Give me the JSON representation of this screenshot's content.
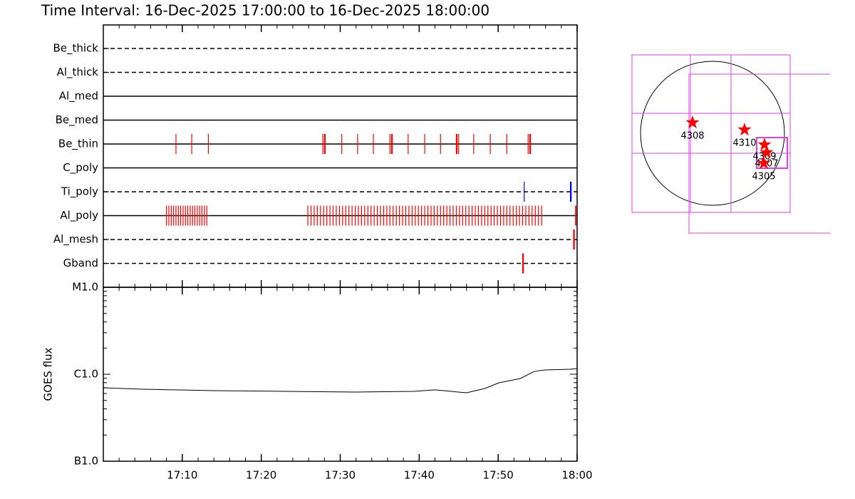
{
  "title": "Time Interval: 16-Dec-2025 17:00:00 to 16-Dec-2025 18:00:00",
  "chart_data": [
    {
      "type": "event",
      "series": [
        {
          "name": "Be_thick",
          "style": "dashed",
          "color": "#ff0000",
          "x": []
        },
        {
          "name": "Al_thick",
          "style": "dashed",
          "color": "#ff0000",
          "x": []
        },
        {
          "name": "Al_med",
          "style": "solid",
          "color": "#ff0000",
          "x": []
        },
        {
          "name": "Be_med",
          "style": "solid",
          "color": "#ff0000",
          "x": []
        },
        {
          "name": "Be_thin",
          "style": "solid",
          "color": "#ff0000",
          "x": [
            9.2,
            11.2,
            13.3,
            27.8,
            28.0,
            28.1,
            30.2,
            32.2,
            34.2,
            36.3,
            36.5,
            36.6,
            38.6,
            40.7,
            42.7,
            44.7,
            44.8,
            45.0,
            46.9,
            49.0,
            51.1,
            53.8,
            54.0,
            54.1
          ]
        },
        {
          "name": "C_poly",
          "style": "solid",
          "color": "#ff0000",
          "x": []
        },
        {
          "name": "Ti_poly",
          "style": "dashed",
          "color": "#0000ff",
          "x": [
            53.3,
            59.15,
            59.2,
            59.25
          ]
        },
        {
          "name": "Al_poly",
          "style": "solid",
          "color": "#ff0000",
          "x": [
            8.0,
            8.3,
            8.6,
            8.9,
            9.2,
            9.5,
            9.8,
            10.1,
            10.4,
            10.7,
            11.0,
            11.3,
            11.6,
            11.9,
            12.2,
            12.5,
            12.8,
            13.1,
            25.9,
            26.3,
            26.7,
            27.1,
            27.5,
            27.9,
            28.3,
            28.7,
            29.1,
            29.5,
            29.9,
            30.3,
            30.7,
            31.1,
            31.5,
            31.9,
            32.3,
            32.7,
            33.1,
            33.5,
            33.9,
            34.3,
            34.7,
            35.1,
            35.5,
            35.9,
            36.3,
            36.7,
            37.1,
            37.5,
            37.9,
            38.3,
            38.7,
            39.1,
            39.5,
            39.9,
            40.3,
            40.7,
            41.1,
            41.5,
            41.9,
            42.3,
            42.7,
            43.1,
            43.5,
            43.9,
            44.3,
            44.7,
            45.1,
            45.5,
            45.9,
            46.3,
            46.7,
            47.1,
            47.5,
            47.9,
            48.3,
            48.7,
            49.1,
            49.5,
            49.9,
            50.3,
            50.7,
            51.1,
            51.5,
            51.9,
            52.3,
            52.7,
            53.1,
            53.5,
            53.9,
            54.3,
            54.7,
            55.1,
            55.5,
            59.8,
            59.85
          ]
        },
        {
          "name": "Al_mesh",
          "style": "dashed",
          "color": "#ff0000",
          "x": [
            59.55,
            59.6,
            59.65
          ]
        },
        {
          "name": "Gband",
          "style": "dashed",
          "color": "#ff0000",
          "x": [
            53.1,
            53.2
          ]
        }
      ]
    },
    {
      "type": "line",
      "ylabel": "GOES flux",
      "log_y": true,
      "xlim": [
        0,
        60
      ],
      "xticks": [
        {
          "value": 10,
          "label": "17:10"
        },
        {
          "value": 20,
          "label": "17:20"
        },
        {
          "value": 30,
          "label": "17:30"
        },
        {
          "value": 40,
          "label": "17:40"
        },
        {
          "value": 50,
          "label": "17:50"
        },
        {
          "value": 60,
          "label": "18:00"
        }
      ],
      "ylim": [
        1e-07,
        1e-05
      ],
      "yticks": [
        {
          "value": 1e-05,
          "label": "M1.0"
        },
        {
          "value": 1e-06,
          "label": "C1.0"
        },
        {
          "value": 1e-07,
          "label": "B1.0"
        }
      ],
      "series": [
        {
          "color": "#000000",
          "x": [
            0,
            5.0,
            14.0,
            23.0,
            32.0,
            39.3,
            42.0,
            46.0,
            48.3,
            50.1,
            52.8,
            54.6,
            55.9,
            59.1,
            60
          ],
          "values": [
            6.98e-07,
            6.73e-07,
            6.48e-07,
            6.36e-07,
            6.24e-07,
            6.36e-07,
            6.61e-07,
            6.12e-07,
            6.86e-07,
            7.97e-07,
            8.93e-07,
            1.08e-06,
            1.12e-06,
            1.14e-06,
            1.16e-06
          ]
        }
      ]
    }
  ],
  "map": {
    "regions": [
      "4308",
      "4310",
      "4309",
      "4307",
      "4305"
    ]
  }
}
